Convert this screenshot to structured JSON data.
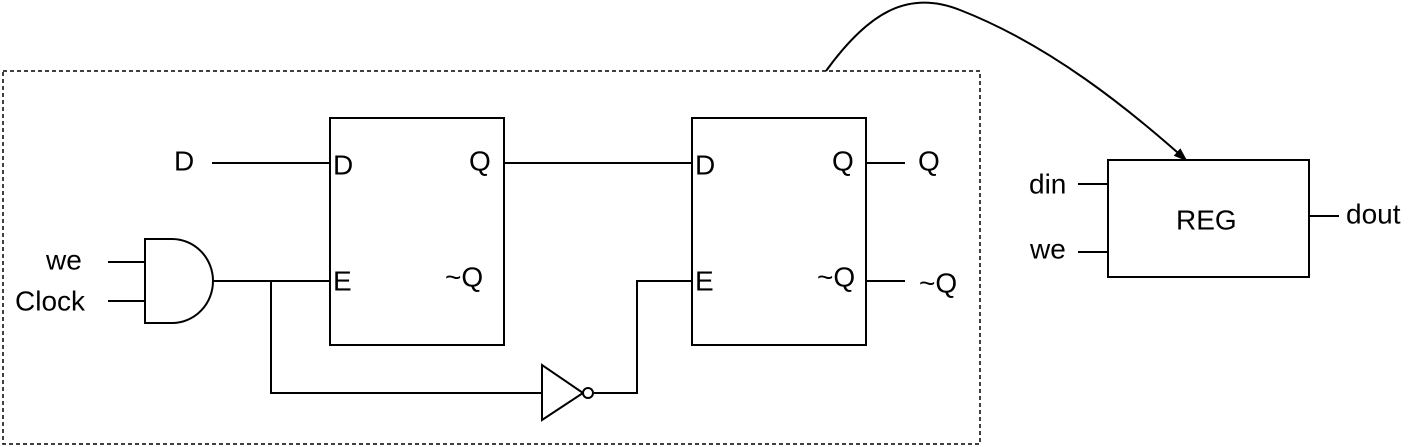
{
  "diagram": {
    "external_inputs": {
      "d": "D",
      "we": "we",
      "clock": "Clock"
    },
    "latch1": {
      "port_d": "D",
      "port_e": "E",
      "port_q": "Q",
      "port_nq": "~Q"
    },
    "latch2": {
      "port_d": "D",
      "port_e": "E",
      "port_q": "Q",
      "port_nq": "~Q"
    },
    "outputs": {
      "q": "Q",
      "nq": "~Q"
    },
    "reg_block": {
      "title": "REG",
      "input_din": "din",
      "input_we": "we",
      "output_dout": "dout"
    }
  }
}
